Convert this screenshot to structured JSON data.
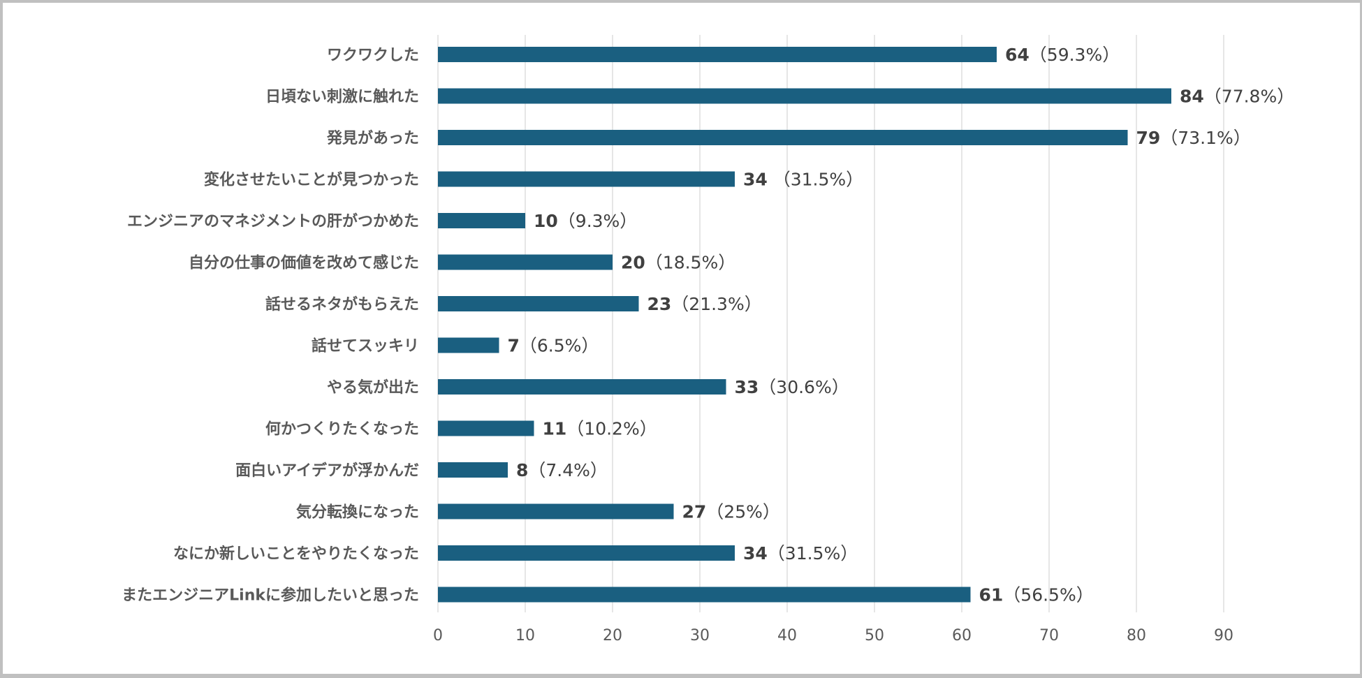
{
  "chart_data": {
    "type": "bar",
    "orientation": "horizontal",
    "categories": [
      "ワクワクした",
      "日頃ない刺激に触れた",
      "発見があった",
      "変化させたいことが見つかった",
      "エンジニアのマネジメントの肝がつかめた",
      "自分の仕事の価値を改めて感じた",
      "話せるネタがもらえた",
      "話せてスッキリ",
      "やる気が出た",
      "何かつくりたくなった",
      "面白いアイデアが浮かんだ",
      "気分転換になった",
      "なにか新しいことをやりたくなった",
      "またエンジニアLinkに参加したいと思った"
    ],
    "values": [
      64,
      84,
      79,
      34,
      10,
      20,
      23,
      7,
      33,
      11,
      8,
      27,
      34,
      61
    ],
    "data_labels": [
      {
        "count": "64",
        "percent": "（59.3%）"
      },
      {
        "count": "84",
        "percent": "（77.8%）"
      },
      {
        "count": "79",
        "percent": "（73.1%）"
      },
      {
        "count": "34",
        "percent": " （31.5%）"
      },
      {
        "count": "10",
        "percent": "（9.3%）"
      },
      {
        "count": "20",
        "percent": "（18.5%）"
      },
      {
        "count": "23",
        "percent": "（21.3%）"
      },
      {
        "count": "7",
        "percent": "（6.5%）"
      },
      {
        "count": "33",
        "percent": "（30.6%）"
      },
      {
        "count": "11",
        "percent": "（10.2%）"
      },
      {
        "count": "8",
        "percent": "（7.4%）"
      },
      {
        "count": "27",
        "percent": "（25%）"
      },
      {
        "count": "34",
        "percent": "（31.5%）"
      },
      {
        "count": "61",
        "percent": "（56.5%）"
      }
    ],
    "xlim": [
      0,
      90
    ],
    "xticks": [
      "0",
      "10",
      "20",
      "30",
      "40",
      "50",
      "60",
      "70",
      "80",
      "90"
    ],
    "grid": "vertical",
    "legend": "none",
    "title": "",
    "xlabel": "",
    "ylabel": "",
    "colors": {
      "bar": "#1a5f80",
      "grid": "#d9d9d9",
      "frame": "#c0c0c0"
    }
  }
}
